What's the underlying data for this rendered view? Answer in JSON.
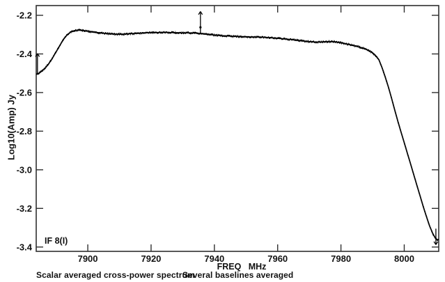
{
  "chart_data": {
    "type": "line",
    "description": "Scalar averaged cross-power spectrum, amplitude vs frequency",
    "ylabel": "Log10(Amp) Jy",
    "xlabel": "FREQ   MHz",
    "if_label": "IF 8(I)",
    "caption_left": "Scalar averaged cross-power spectrum",
    "caption_right": "Several baselines averaged",
    "xlim": [
      7883.7,
      8010.9
    ],
    "ylim": [
      -3.4225,
      -2.1495
    ],
    "grid": false,
    "legend": "none",
    "colors": {
      "curve": "#000000",
      "frame": "#2f2f2f",
      "text": "#111111",
      "background": "#ffffff"
    },
    "xticks": {
      "values": [
        7900,
        7920,
        7940,
        7960,
        7980,
        8000
      ],
      "labels": [
        "7900",
        "7920",
        "7940",
        "7960",
        "7980",
        "8000"
      ]
    },
    "yticks": {
      "values": [
        -2.2,
        -2.4,
        -2.6,
        -2.8,
        -3.0,
        -3.2,
        -3.4
      ],
      "labels": [
        "-2.2",
        "-2.4",
        "-2.6",
        "-2.8",
        "-3.0",
        "-3.2",
        "-3.4"
      ]
    },
    "series": [
      {
        "name": "cross-power amplitude",
        "points": [
          [
            7883.7,
            -2.505
          ],
          [
            7884.6,
            -2.5
          ],
          [
            7885.6,
            -2.487
          ],
          [
            7886.6,
            -2.472
          ],
          [
            7887.6,
            -2.452
          ],
          [
            7888.6,
            -2.428
          ],
          [
            7889.6,
            -2.4
          ],
          [
            7890.6,
            -2.372
          ],
          [
            7891.6,
            -2.344
          ],
          [
            7892.6,
            -2.318
          ],
          [
            7893.6,
            -2.299
          ],
          [
            7894.6,
            -2.287
          ],
          [
            7895.6,
            -2.28
          ],
          [
            7896.6,
            -2.277
          ],
          [
            7897.6,
            -2.277
          ],
          [
            7898.6,
            -2.279
          ],
          [
            7900,
            -2.282
          ],
          [
            7902,
            -2.287
          ],
          [
            7904,
            -2.291
          ],
          [
            7906,
            -2.294
          ],
          [
            7908,
            -2.297
          ],
          [
            7910,
            -2.298
          ],
          [
            7912,
            -2.297
          ],
          [
            7914,
            -2.295
          ],
          [
            7916,
            -2.293
          ],
          [
            7918,
            -2.291
          ],
          [
            7920,
            -2.29
          ],
          [
            7922,
            -2.289
          ],
          [
            7924,
            -2.288
          ],
          [
            7926,
            -2.289
          ],
          [
            7928,
            -2.29
          ],
          [
            7930,
            -2.291
          ],
          [
            7932,
            -2.291
          ],
          [
            7934,
            -2.292
          ],
          [
            7936,
            -2.295
          ],
          [
            7938,
            -2.299
          ],
          [
            7940,
            -2.302
          ],
          [
            7942,
            -2.305
          ],
          [
            7944,
            -2.307
          ],
          [
            7946,
            -2.309
          ],
          [
            7948,
            -2.31
          ],
          [
            7950,
            -2.311
          ],
          [
            7952,
            -2.312
          ],
          [
            7954,
            -2.312
          ],
          [
            7956,
            -2.314
          ],
          [
            7958,
            -2.316
          ],
          [
            7960,
            -2.319
          ],
          [
            7962,
            -2.322
          ],
          [
            7964,
            -2.325
          ],
          [
            7966,
            -2.329
          ],
          [
            7968,
            -2.333
          ],
          [
            7970,
            -2.336
          ],
          [
            7972,
            -2.339
          ],
          [
            7974,
            -2.338
          ],
          [
            7976,
            -2.336
          ],
          [
            7978,
            -2.337
          ],
          [
            7980,
            -2.342
          ],
          [
            7982,
            -2.349
          ],
          [
            7984,
            -2.357
          ],
          [
            7986,
            -2.365
          ],
          [
            7988,
            -2.376
          ],
          [
            7990,
            -2.394
          ],
          [
            7991,
            -2.41
          ],
          [
            7992,
            -2.43
          ],
          [
            7993,
            -2.472
          ],
          [
            7994,
            -2.52
          ],
          [
            7995,
            -2.572
          ],
          [
            7996,
            -2.63
          ],
          [
            7997,
            -2.69
          ],
          [
            7998,
            -2.75
          ],
          [
            7999,
            -2.805
          ],
          [
            8000,
            -2.86
          ],
          [
            8001,
            -2.915
          ],
          [
            8002,
            -2.97
          ],
          [
            8003,
            -3.025
          ],
          [
            8004,
            -3.08
          ],
          [
            8005,
            -3.135
          ],
          [
            8006,
            -3.19
          ],
          [
            8007,
            -3.242
          ],
          [
            8008,
            -3.29
          ],
          [
            8009,
            -3.33
          ],
          [
            8009.8,
            -3.353
          ],
          [
            8010.4,
            -3.363
          ],
          [
            8010.9,
            -3.36
          ]
        ]
      }
    ],
    "annotations": {
      "spike": {
        "x": 7935.6,
        "base": -2.295,
        "top": -2.18,
        "marker": -2.262
      },
      "arrows": [
        {
          "x": 7884.1,
          "tail": -2.505,
          "tip": -2.398
        },
        {
          "x": 8010.0,
          "tail": -3.305,
          "tip": -3.388
        }
      ]
    }
  }
}
